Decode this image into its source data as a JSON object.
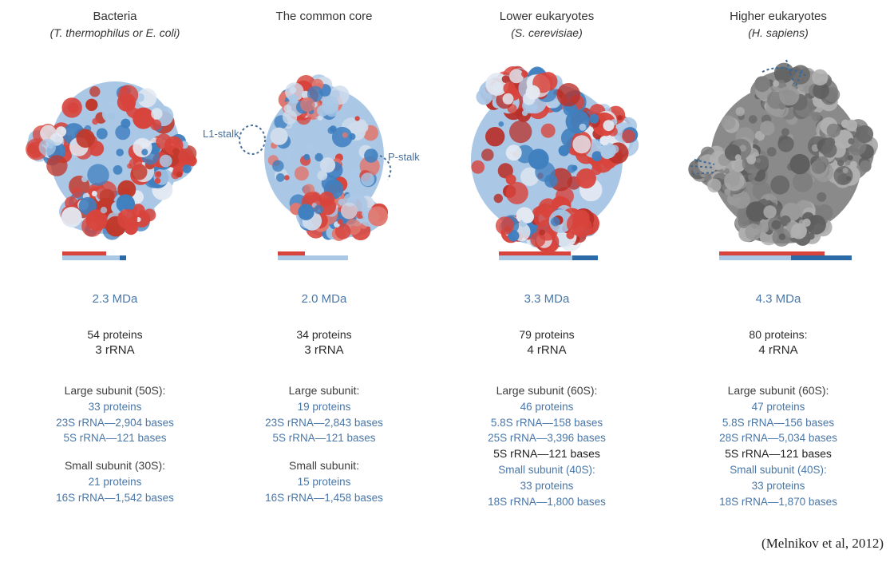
{
  "columns": [
    {
      "title": "Bacteria",
      "subtitle": "(T. thermophilus or E. coli)",
      "mass": "2.3 MDa",
      "proteins": "54 proteins",
      "rrna": "3 rRNA",
      "lines": [
        {
          "text": "Large subunit (50S):",
          "style": "head"
        },
        {
          "text": "33 proteins",
          "style": "blue"
        },
        {
          "text": "23S rRNA—2,904 bases",
          "style": "blue"
        },
        {
          "text": "5S rRNA—121 bases",
          "style": "blue"
        },
        {
          "text": "",
          "style": "gap"
        },
        {
          "text": "Small subunit (30S):",
          "style": "head"
        },
        {
          "text": "21 proteins",
          "style": "blue"
        },
        {
          "text": "16S rRNA—1,542 bases",
          "style": "blue"
        }
      ],
      "palette": {
        "red": "#d8443c",
        "light": "#aac8e6",
        "blue": "#3f7fbf"
      }
    },
    {
      "title": "The common core",
      "subtitle": "",
      "mass": "2.0 MDa",
      "proteins": "34 proteins",
      "rrna": "3 rRNA",
      "callouts": [
        "L1-stalk",
        "P-stalk"
      ],
      "lines": [
        {
          "text": "Large subunit:",
          "style": "head"
        },
        {
          "text": "19 proteins",
          "style": "blue"
        },
        {
          "text": "23S rRNA—2,843 bases",
          "style": "blue"
        },
        {
          "text": "5S rRNA—121 bases",
          "style": "blue"
        },
        {
          "text": "",
          "style": "gap"
        },
        {
          "text": "Small subunit:",
          "style": "head"
        },
        {
          "text": "15 proteins",
          "style": "blue"
        },
        {
          "text": "16S rRNA—1,458 bases",
          "style": "blue"
        }
      ],
      "palette": {
        "red": "#d8443c",
        "light": "#aac8e6",
        "blue": "#3f7fbf"
      }
    },
    {
      "title": "Lower eukaryotes",
      "subtitle": "(S. cerevisiae)",
      "mass": "3.3 MDa",
      "proteins": "79 proteins",
      "rrna": "4 rRNA",
      "lines": [
        {
          "text": "Large subunit (60S):",
          "style": "head"
        },
        {
          "text": "46 proteins",
          "style": "blue"
        },
        {
          "text": "5.8S rRNA—158 bases",
          "style": "blue"
        },
        {
          "text": "25S rRNA—3,396 bases",
          "style": "blue"
        },
        {
          "text": "5S rRNA—121 bases",
          "style": "dark"
        },
        {
          "text": "Small subunit (40S):",
          "style": "blue"
        },
        {
          "text": "33 proteins",
          "style": "blue"
        },
        {
          "text": "18S rRNA—1,800 bases",
          "style": "blue"
        }
      ],
      "palette": {
        "red": "#d8443c",
        "light": "#aac8e6",
        "blue": "#3f7fbf"
      }
    },
    {
      "title": "Higher eukaryotes",
      "subtitle": "(H. sapiens)",
      "mass": "4.3 MDa",
      "proteins": "80 proteins:",
      "rrna": "4 rRNA",
      "lines": [
        {
          "text": "Large subunit (60S):",
          "style": "head"
        },
        {
          "text": "47 proteins",
          "style": "blue"
        },
        {
          "text": "5.8S rRNA—156 bases",
          "style": "blue"
        },
        {
          "text": "28S rRNA—5,034 bases",
          "style": "blue"
        },
        {
          "text": "5S rRNA—121 bases",
          "style": "dark"
        },
        {
          "text": "Small subunit (40S):",
          "style": "blue"
        },
        {
          "text": "33 proteins",
          "style": "blue"
        },
        {
          "text": "18S rRNA—1,870 bases",
          "style": "blue"
        }
      ],
      "palette": {
        "red": "#d8443c",
        "light": "#aac8e6",
        "blue": "#3f7fbf",
        "gray": "#7d7d7d"
      }
    }
  ],
  "citation": "(Melnikov et al, 2012)"
}
